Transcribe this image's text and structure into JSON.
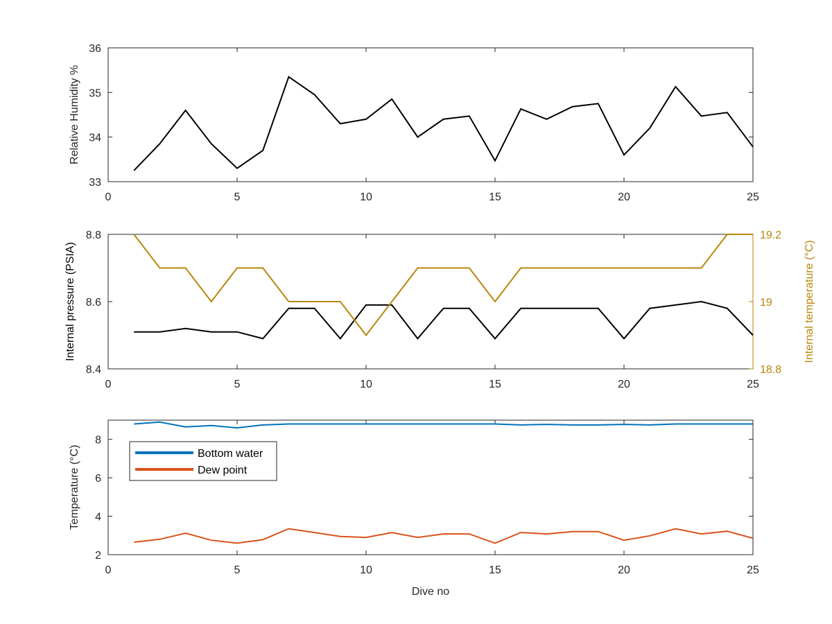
{
  "chart_data": [
    {
      "type": "line",
      "xlabel": "",
      "ylabel": "Relative Humidity %",
      "xlim": [
        0,
        25
      ],
      "ylim": [
        33,
        36
      ],
      "xticks": [
        "0",
        "5",
        "10",
        "15",
        "20",
        "25"
      ],
      "yticks": [
        "33",
        "34",
        "35",
        "36"
      ],
      "grid": false,
      "series": [
        {
          "color": "#000000",
          "x": [
            1,
            2,
            3,
            4,
            5,
            6,
            7,
            8,
            9,
            10,
            11,
            12,
            13,
            14,
            15,
            16,
            17,
            18,
            19,
            20,
            21,
            22,
            23,
            24,
            25
          ],
          "values": [
            33.25,
            33.85,
            34.6,
            33.85,
            33.3,
            33.7,
            35.35,
            34.95,
            34.3,
            34.4,
            34.85,
            34.0,
            34.4,
            34.47,
            33.47,
            34.63,
            34.4,
            34.68,
            34.75,
            33.6,
            34.2,
            35.13,
            34.47,
            34.55,
            33.78
          ]
        }
      ]
    },
    {
      "type": "line",
      "xlabel": "",
      "ylabel": "Internal pressure (PSIA)",
      "ylabel_right": "Internal temperature (°C)",
      "xlim": [
        0,
        25
      ],
      "ylim": [
        8.4,
        8.8
      ],
      "ylim_right": [
        18.8,
        19.2
      ],
      "xticks": [
        "0",
        "5",
        "10",
        "15",
        "20",
        "25"
      ],
      "yticks": [
        "8.4",
        "8.6",
        "8.8"
      ],
      "yticks_right": [
        "18.8",
        "19",
        "19.2"
      ],
      "right_axis_color": "#b8860b",
      "grid": false,
      "series": [
        {
          "axis": "left",
          "color": "#000000",
          "x": [
            1,
            2,
            3,
            4,
            5,
            6,
            7,
            8,
            9,
            10,
            11,
            12,
            13,
            14,
            15,
            16,
            17,
            18,
            19,
            20,
            21,
            22,
            23,
            24,
            25
          ],
          "values": [
            8.51,
            8.51,
            8.52,
            8.51,
            8.51,
            8.49,
            8.58,
            8.58,
            8.49,
            8.59,
            8.59,
            8.49,
            8.58,
            8.58,
            8.49,
            8.58,
            8.58,
            8.58,
            8.58,
            8.49,
            8.58,
            8.59,
            8.6,
            8.58,
            8.5
          ]
        },
        {
          "axis": "right",
          "color": "#b8860b",
          "x": [
            1,
            2,
            3,
            4,
            5,
            6,
            7,
            8,
            9,
            10,
            11,
            12,
            13,
            14,
            15,
            16,
            17,
            18,
            19,
            20,
            21,
            22,
            23,
            24,
            25
          ],
          "values": [
            19.2,
            19.1,
            19.1,
            19.0,
            19.1,
            19.1,
            19.0,
            19.0,
            19.0,
            18.9,
            19.0,
            19.1,
            19.1,
            19.1,
            19.0,
            19.1,
            19.1,
            19.1,
            19.1,
            19.1,
            19.1,
            19.1,
            19.1,
            19.2,
            19.2
          ]
        }
      ]
    },
    {
      "type": "line",
      "xlabel": "Dive no",
      "ylabel": "Temperature (°C)",
      "xlim": [
        0,
        25
      ],
      "ylim": [
        2,
        9
      ],
      "xticks": [
        "0",
        "5",
        "10",
        "15",
        "20",
        "25"
      ],
      "yticks": [
        "2",
        "4",
        "6",
        "8"
      ],
      "grid": false,
      "legend_position": "top-left",
      "series": [
        {
          "name": "Bottom water",
          "color": "#0072bd",
          "x": [
            1,
            2,
            3,
            4,
            5,
            6,
            7,
            8,
            9,
            10,
            11,
            12,
            13,
            14,
            15,
            16,
            17,
            18,
            19,
            20,
            21,
            22,
            23,
            24,
            25
          ],
          "values": [
            8.8,
            8.9,
            8.65,
            8.72,
            8.6,
            8.75,
            8.8,
            8.8,
            8.8,
            8.8,
            8.8,
            8.8,
            8.8,
            8.8,
            8.8,
            8.75,
            8.78,
            8.75,
            8.75,
            8.78,
            8.75,
            8.8,
            8.8,
            8.8,
            8.8
          ]
        },
        {
          "name": "Dew point",
          "color": "#d95319",
          "x": [
            1,
            2,
            3,
            4,
            5,
            6,
            7,
            8,
            9,
            10,
            11,
            12,
            13,
            14,
            15,
            16,
            17,
            18,
            19,
            20,
            21,
            22,
            23,
            24,
            25
          ],
          "values": [
            2.65,
            2.8,
            3.12,
            2.75,
            2.6,
            2.78,
            3.35,
            3.15,
            2.95,
            2.9,
            3.15,
            2.9,
            3.08,
            3.08,
            2.6,
            3.15,
            3.08,
            3.2,
            3.2,
            2.75,
            2.98,
            3.35,
            3.08,
            3.22,
            2.85
          ]
        }
      ]
    }
  ]
}
